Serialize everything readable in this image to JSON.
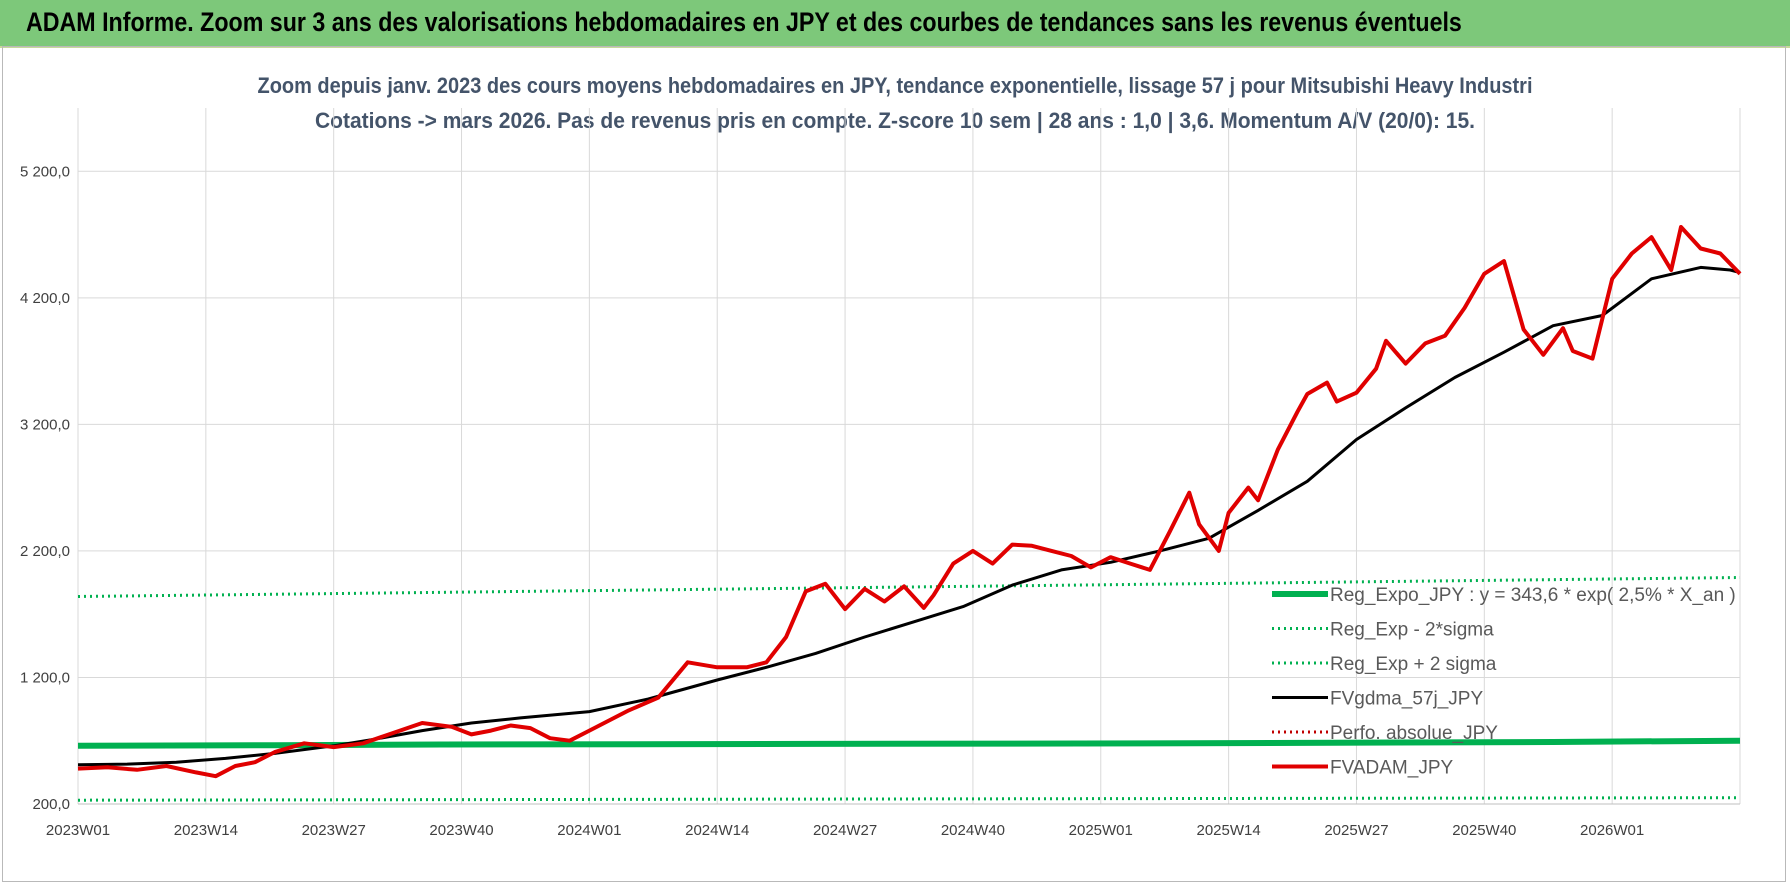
{
  "banner": {
    "title": "ADAM Informe. Zoom sur 3 ans des valorisations hebdomadaires en JPY et des courbes de tendances sans les revenus éventuels"
  },
  "colors": {
    "banner_bg": "#7dc87a",
    "trend_green": "#00b050",
    "sigma_green": "#00b050",
    "gdma_black": "#000000",
    "perfo_red": "#c00000",
    "adam_red": "#e00000",
    "grid": "#d9d9d9"
  },
  "chart_data": {
    "type": "line",
    "title": "Zoom depuis janv. 2023 des cours moyens hebdomadaires en JPY, tendance exponentielle, lissage 57 j pour Mitsubishi Heavy Industri",
    "subtitle": "Cotations -> mars 2026. Pas de revenus pris en compte. Z-score 10 sem | 28 ans : 1,0 | 3,6. Momentum A/V (20/0): 15.",
    "xlabel": "",
    "ylabel": "",
    "ylim": [
      200,
      5700
    ],
    "grid": true,
    "legend_position": "right-bottom",
    "x_tick_labels": [
      "2023W01",
      "2023W14",
      "2023W27",
      "2023W40",
      "2024W01",
      "2024W14",
      "2024W27",
      "2024W40",
      "2025W01",
      "2025W14",
      "2025W27",
      "2025W40",
      "2026W01"
    ],
    "x_tick_index": [
      0,
      13,
      26,
      39,
      52,
      65,
      78,
      91,
      104,
      117,
      130,
      143,
      156
    ],
    "y_ticks": [
      200,
      1200,
      2200,
      3200,
      4200,
      5200
    ],
    "y_tick_labels": [
      "200,0",
      "1 200,0",
      "2 200,0",
      "3 200,0",
      "4 200,0",
      "5 200,0"
    ],
    "series": [
      {
        "name": "Reg_Expo_JPY : y = 343,6 * exp( 2,5% * X_an )",
        "style": "solid-thick",
        "color": "#00b050",
        "x_index": [
          0,
          20,
          37,
          75,
          113,
          150,
          169
        ],
        "values": [
          660,
          665,
          670,
          675,
          680,
          690,
          700
        ]
      },
      {
        "name": "Reg_Exp - 2*sigma",
        "style": "dotted",
        "color": "#00b050",
        "x_index": [
          0,
          169
        ],
        "values": [
          230,
          250
        ]
      },
      {
        "name": "Reg_Exp + 2 sigma",
        "style": "dotted",
        "color": "#00b050",
        "x_index": [
          0,
          169
        ],
        "values": [
          1840,
          1990
        ]
      },
      {
        "name": "FVgdma_57j_JPY",
        "style": "solid",
        "color": "#000000",
        "x_index": [
          0,
          5,
          10,
          15,
          20,
          26,
          30,
          35,
          40,
          45,
          52,
          58,
          65,
          70,
          75,
          80,
          85,
          90,
          95,
          100,
          105,
          110,
          115,
          120,
          125,
          130,
          135,
          140,
          145,
          150,
          155,
          160,
          165,
          168,
          169
        ],
        "values": [
          510,
          515,
          530,
          560,
          600,
          660,
          710,
          780,
          840,
          880,
          930,
          1030,
          1180,
          1280,
          1390,
          1520,
          1640,
          1760,
          1930,
          2050,
          2110,
          2200,
          2300,
          2520,
          2750,
          3080,
          3330,
          3570,
          3770,
          3980,
          4060,
          4350,
          4440,
          4420,
          4400
        ]
      },
      {
        "name": "Perfo. absolue_JPY",
        "style": "dotted",
        "color": "#c00000",
        "x_index": [],
        "values": []
      },
      {
        "name": "FVADAM_JPY",
        "style": "solid-thick",
        "color": "#e00000",
        "x_index": [
          0,
          3,
          6,
          9,
          12,
          14,
          16,
          18,
          20,
          23,
          26,
          29,
          32,
          35,
          38,
          40,
          42,
          44,
          46,
          48,
          50,
          52,
          56,
          59,
          62,
          65,
          68,
          70,
          72,
          74,
          76,
          78,
          80,
          82,
          84,
          86,
          87,
          89,
          91,
          93,
          95,
          97,
          99,
          101,
          103,
          105,
          107,
          109,
          111,
          113,
          114,
          116,
          117,
          119,
          120,
          122,
          124,
          125,
          127,
          128,
          130,
          132,
          133,
          135,
          137,
          139,
          141,
          143,
          145,
          147,
          149,
          151,
          152,
          154,
          156,
          158,
          160,
          162,
          163,
          165,
          167,
          169
        ],
        "values": [
          480,
          490,
          470,
          500,
          450,
          420,
          500,
          530,
          610,
          680,
          650,
          680,
          760,
          840,
          810,
          750,
          780,
          820,
          800,
          720,
          700,
          780,
          940,
          1040,
          1320,
          1280,
          1280,
          1320,
          1520,
          1880,
          1940,
          1740,
          1900,
          1800,
          1920,
          1750,
          1850,
          2100,
          2200,
          2100,
          2250,
          2240,
          2200,
          2160,
          2070,
          2150,
          2100,
          2050,
          2350,
          2660,
          2410,
          2200,
          2500,
          2700,
          2600,
          3000,
          3300,
          3440,
          3530,
          3380,
          3450,
          3640,
          3860,
          3680,
          3840,
          3900,
          4120,
          4390,
          4490,
          3950,
          3750,
          3960,
          3780,
          3720,
          4350,
          4550,
          4680,
          4420,
          4760,
          4590,
          4550,
          4390
        ]
      }
    ]
  }
}
